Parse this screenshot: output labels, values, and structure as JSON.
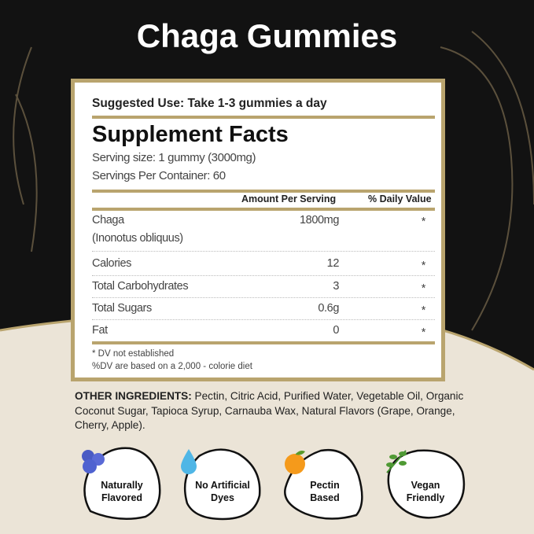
{
  "title": "Chaga Gummies",
  "panel": {
    "suggested_use": "Suggested Use: Take 1-3 gummies a day",
    "heading": "Supplement Facts",
    "serving_size": "Serving size: 1 gummy (3000mg)",
    "servings_per_container": "Servings Per Container: 60",
    "col_amount": "Amount Per Serving",
    "col_dv": "% Daily Value",
    "rows": [
      {
        "name": "Chaga",
        "sub": "(Inonotus obliquus)",
        "amount": "1800mg",
        "dv": "*"
      },
      {
        "name": "Calories",
        "amount": "12",
        "dv": "*"
      },
      {
        "name": "Total Carbohydrates",
        "amount": "3",
        "dv": "*"
      },
      {
        "name": "Total Sugars",
        "amount": "0.6g",
        "dv": "*"
      },
      {
        "name": "Fat",
        "amount": "0",
        "dv": "*"
      }
    ],
    "footnote1": "* DV not established",
    "footnote2": "%DV are based on a 2,000 - colorie diet"
  },
  "ingredients": {
    "label": "OTHER INGREDIENTS:",
    "text": " Pectin, Citric Acid, Purified Water, Vegetable Oil, Organic Coconut Sugar, Tapioca Syrup, Carnauba Wax, Natural Flavors (Grape, Orange, Cherry, Apple)."
  },
  "badges": [
    {
      "icon": "blueberry-icon",
      "line1": "Naturally",
      "line2": "Flavored"
    },
    {
      "icon": "water-drop-icon",
      "line1": "No Artificial",
      "line2": "Dyes"
    },
    {
      "icon": "orange-icon",
      "line1": "Pectin",
      "line2": "Based"
    },
    {
      "icon": "leaf-icon",
      "line1": "Vegan",
      "line2": "Friendly"
    }
  ],
  "colors": {
    "gold": "#b9a46e",
    "dark": "#111111",
    "cream": "#ebe4d7"
  }
}
